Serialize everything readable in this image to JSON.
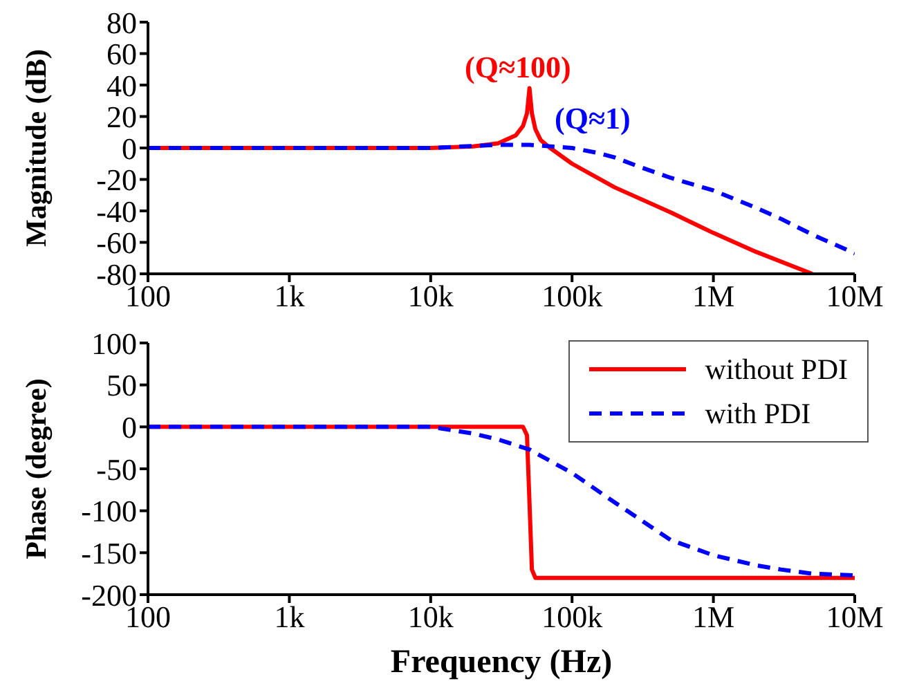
{
  "chart_data": [
    {
      "type": "line",
      "ylabel": "Magnitude (dB)",
      "xlim": [
        100,
        10000000
      ],
      "log": "x",
      "ylim": [
        -80,
        80
      ],
      "yticks": [
        -80,
        -60,
        -40,
        -20,
        0,
        20,
        40,
        60,
        80
      ],
      "xticks": [
        100,
        {
          "value": 1000,
          "label": "1k"
        },
        {
          "value": 10000,
          "label": "10k"
        },
        {
          "value": 100000,
          "label": "100k"
        },
        {
          "value": 1000000,
          "label": "1M"
        },
        {
          "value": 10000000,
          "label": "10M"
        }
      ],
      "annotations": [
        "(Q≈100)",
        "(Q≈1)"
      ],
      "series": [
        {
          "color": "#ff0000",
          "line_style": "solid",
          "x": [
            100,
            1000,
            10000,
            20000,
            30000,
            40000,
            45000,
            48000,
            50000,
            52000,
            55000,
            60000,
            70000,
            100000,
            200000,
            500000,
            1000000,
            2000000,
            5000000
          ],
          "values": [
            0,
            0,
            0,
            1,
            3,
            8,
            14,
            22,
            38,
            22,
            12,
            5,
            0,
            -10,
            -25,
            -41,
            -54,
            -66,
            -80
          ]
        },
        {
          "color": "#0000ff",
          "line_style": "dashed",
          "x": [
            100,
            1000,
            10000,
            30000,
            50000,
            100000,
            150000,
            200000,
            300000,
            500000,
            1000000,
            2000000,
            3000000,
            5000000,
            10000000
          ],
          "values": [
            0,
            0,
            0,
            2,
            2,
            0,
            -3,
            -6,
            -12,
            -19,
            -27,
            -38,
            -45,
            -55,
            -67
          ]
        }
      ]
    },
    {
      "type": "line",
      "ylabel": "Phase (degree)",
      "xlabel": "Frequency (Hz)",
      "xlim": [
        100,
        10000000
      ],
      "log": "x",
      "ylim": [
        -200,
        100
      ],
      "yticks": [
        -200,
        -150,
        -100,
        -50,
        0,
        50,
        100
      ],
      "xticks": [
        100,
        {
          "value": 1000,
          "label": "1k"
        },
        {
          "value": 10000,
          "label": "10k"
        },
        {
          "value": 100000,
          "label": "100k"
        },
        {
          "value": 1000000,
          "label": "1M"
        },
        {
          "value": 10000000,
          "label": "10M"
        }
      ],
      "legend": "top right",
      "series": [
        {
          "name": "without PDI",
          "color": "#ff0000",
          "line_style": "solid",
          "x": [
            100,
            1000,
            10000,
            45000,
            48000,
            50000,
            52000,
            55000,
            100000,
            1000000,
            10000000
          ],
          "values": [
            0,
            0,
            0,
            0,
            -10,
            -90,
            -170,
            -180,
            -180,
            -180,
            -180
          ]
        },
        {
          "name": "with PDI",
          "color": "#0000ff",
          "line_style": "dashed",
          "x": [
            100,
            1000,
            10000,
            20000,
            30000,
            50000,
            100000,
            200000,
            300000,
            500000,
            1000000,
            2000000,
            3000000,
            5000000,
            10000000
          ],
          "values": [
            0,
            0,
            0,
            -8,
            -15,
            -27,
            -55,
            -90,
            -110,
            -135,
            -153,
            -165,
            -170,
            -175,
            -177
          ]
        }
      ]
    }
  ]
}
